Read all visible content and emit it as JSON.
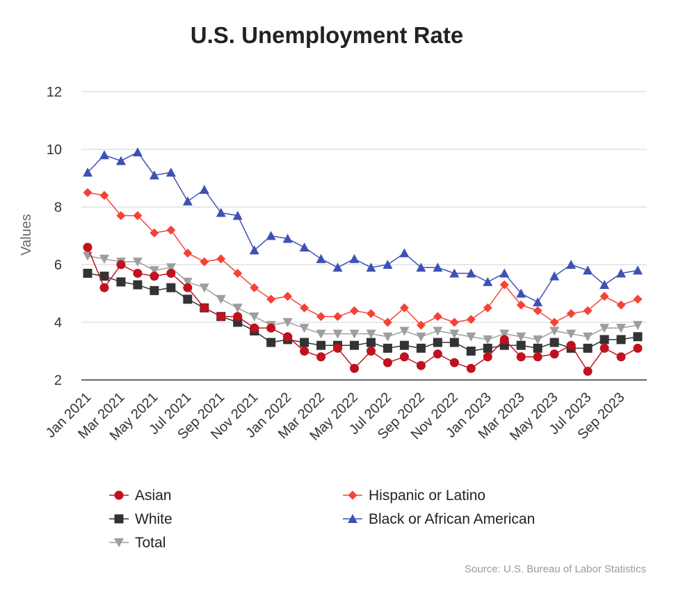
{
  "chart_data": {
    "type": "line",
    "title": "U.S. Unemployment Rate",
    "ylabel": "Values",
    "xlabel": "",
    "ylim": [
      2,
      12
    ],
    "yticks": [
      2,
      4,
      6,
      8,
      10,
      12
    ],
    "grid": true,
    "legend_position": "bottom",
    "source": "Source: U.S. Bureau of Labor Statistics",
    "x": [
      "Jan 2021",
      "Feb 2021",
      "Mar 2021",
      "Apr 2021",
      "May 2021",
      "Jun 2021",
      "Jul 2021",
      "Aug 2021",
      "Sep 2021",
      "Oct 2021",
      "Nov 2021",
      "Dec 2021",
      "Jan 2022",
      "Feb 2022",
      "Mar 2022",
      "Apr 2022",
      "May 2022",
      "Jun 2022",
      "Jul 2022",
      "Aug 2022",
      "Sep 2022",
      "Oct 2022",
      "Nov 2022",
      "Dec 2022",
      "Jan 2023",
      "Feb 2023",
      "Mar 2023",
      "Apr 2023",
      "May 2023",
      "Jun 2023",
      "Jul 2023",
      "Aug 2023",
      "Sep 2023",
      "Oct 2023"
    ],
    "xtick_labels": [
      "Jan 2021",
      "Mar 2021",
      "May 2021",
      "Jul 2021",
      "Sep 2021",
      "Nov 2021",
      "Jan 2022",
      "Mar 2022",
      "May 2022",
      "Jul 2022",
      "Sep 2022",
      "Nov 2022",
      "Jan 2023",
      "Mar 2023",
      "May 2023",
      "Jul 2023",
      "Sep 2023"
    ],
    "series": [
      {
        "name": "Black or African American",
        "color": "#3f51b5",
        "marker": "triangle-up",
        "values": [
          9.2,
          9.8,
          9.6,
          9.9,
          9.1,
          9.2,
          8.2,
          8.6,
          7.8,
          7.7,
          6.5,
          7.0,
          6.9,
          6.6,
          6.2,
          5.9,
          6.2,
          5.9,
          6.0,
          6.4,
          5.9,
          5.9,
          5.7,
          5.7,
          5.4,
          5.7,
          5.0,
          4.7,
          5.6,
          6.0,
          5.8,
          5.3,
          5.7,
          5.8
        ]
      },
      {
        "name": "Hispanic or Latino",
        "color": "#f44336",
        "marker": "diamond",
        "values": [
          8.5,
          8.4,
          7.7,
          7.7,
          7.1,
          7.2,
          6.4,
          6.1,
          6.2,
          5.7,
          5.2,
          4.8,
          4.9,
          4.5,
          4.2,
          4.2,
          4.4,
          4.3,
          4.0,
          4.5,
          3.9,
          4.2,
          4.0,
          4.1,
          4.5,
          5.3,
          4.6,
          4.4,
          4.0,
          4.3,
          4.4,
          4.9,
          4.6,
          4.8
        ]
      },
      {
        "name": "Total",
        "color": "#9e9e9e",
        "marker": "triangle-down",
        "values": [
          6.3,
          6.2,
          6.1,
          6.1,
          5.8,
          5.9,
          5.4,
          5.2,
          4.8,
          4.5,
          4.2,
          3.9,
          4.0,
          3.8,
          3.6,
          3.6,
          3.6,
          3.6,
          3.5,
          3.7,
          3.5,
          3.7,
          3.6,
          3.5,
          3.4,
          3.6,
          3.5,
          3.4,
          3.7,
          3.6,
          3.5,
          3.8,
          3.8,
          3.9
        ]
      },
      {
        "name": "White",
        "color": "#333333",
        "marker": "square",
        "values": [
          5.7,
          5.6,
          5.4,
          5.3,
          5.1,
          5.2,
          4.8,
          4.5,
          4.2,
          4.0,
          3.7,
          3.3,
          3.4,
          3.3,
          3.2,
          3.2,
          3.2,
          3.3,
          3.1,
          3.2,
          3.1,
          3.3,
          3.3,
          3.0,
          3.1,
          3.2,
          3.2,
          3.1,
          3.3,
          3.1,
          3.1,
          3.4,
          3.4,
          3.5
        ]
      },
      {
        "name": "Asian",
        "color": "#c0111f",
        "marker": "circle",
        "values": [
          6.6,
          5.2,
          6.0,
          5.7,
          5.6,
          5.7,
          5.2,
          4.5,
          4.2,
          4.2,
          3.8,
          3.8,
          3.5,
          3.0,
          2.8,
          3.1,
          2.4,
          3.0,
          2.6,
          2.8,
          2.5,
          2.9,
          2.6,
          2.4,
          2.8,
          3.4,
          2.8,
          2.8,
          2.9,
          3.2,
          2.3,
          3.1,
          2.8,
          3.1
        ]
      }
    ],
    "legend_order": [
      "Asian",
      "Hispanic or Latino",
      "White",
      "Black or African American",
      "Total"
    ]
  }
}
